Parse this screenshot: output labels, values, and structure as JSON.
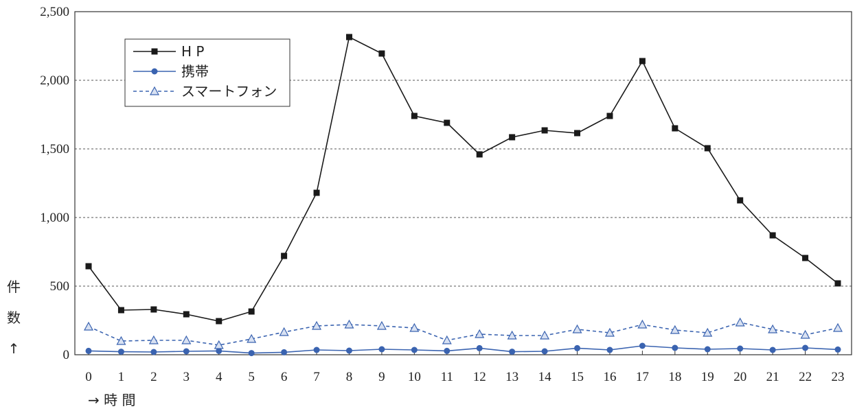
{
  "chart_data": {
    "type": "line",
    "title": "",
    "xlabel": "→ 時 間",
    "ylabel": "件数↑",
    "ylim": [
      0,
      2500
    ],
    "yticks": [
      0,
      500,
      1000,
      1500,
      2000,
      2500
    ],
    "ytick_labels": [
      "0",
      "500",
      "1,000",
      "1,500",
      "2,000",
      "2,500"
    ],
    "grid": "horizontal-dashed",
    "legend_position": "top-left",
    "categories": [
      "0",
      "1",
      "2",
      "3",
      "4",
      "5",
      "6",
      "7",
      "8",
      "9",
      "10",
      "11",
      "12",
      "13",
      "14",
      "15",
      "16",
      "17",
      "18",
      "19",
      "20",
      "21",
      "22",
      "23"
    ],
    "series": [
      {
        "name": "H P",
        "color": "#1a1a1a",
        "marker": "square",
        "line": "solid",
        "values": [
          645,
          325,
          330,
          295,
          245,
          315,
          720,
          1180,
          2315,
          2195,
          1740,
          1690,
          1460,
          1585,
          1635,
          1615,
          1740,
          2140,
          1650,
          1505,
          1125,
          870,
          705,
          520
        ]
      },
      {
        "name": "携帯",
        "color": "#3a63b0",
        "marker": "circle",
        "line": "solid",
        "values": [
          28,
          22,
          20,
          25,
          28,
          12,
          18,
          35,
          30,
          40,
          35,
          28,
          48,
          22,
          25,
          48,
          35,
          65,
          50,
          40,
          45,
          35,
          50,
          38
        ]
      },
      {
        "name": "スマートフォン",
        "color": "#3a63b0",
        "marker": "triangle",
        "line": "dashed",
        "values": [
          205,
          100,
          105,
          105,
          70,
          115,
          165,
          210,
          220,
          210,
          195,
          105,
          150,
          140,
          140,
          185,
          160,
          220,
          180,
          160,
          235,
          185,
          145,
          195
        ]
      }
    ]
  }
}
